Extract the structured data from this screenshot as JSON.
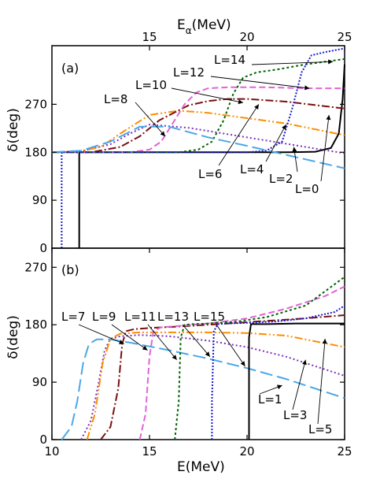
{
  "chart_data": [
    {
      "panel": "(a)",
      "type": "line",
      "top_axis": {
        "label_main": "E",
        "label_sub": "α",
        "label_unit": "(MeV)",
        "ticks": [
          15,
          20,
          25
        ]
      },
      "ylabel_main": "δ",
      "ylabel_unit": "(deg)",
      "ylim": [
        0,
        380
      ],
      "xlim": [
        10,
        25
      ],
      "yticks": [
        0,
        90,
        180,
        270
      ],
      "series": [
        {
          "name": "L=0",
          "color": "#000000",
          "dash": "",
          "x": [
            11.4,
            11.4,
            12,
            18,
            22,
            23.5,
            24.3,
            24.7,
            24.9,
            25
          ],
          "y": [
            0,
            180,
            180,
            180,
            180,
            181,
            188,
            215,
            280,
            345
          ]
        },
        {
          "name": "L=2",
          "color": "#7b2fbe",
          "dash": "2,3",
          "x": [
            10,
            11.5,
            13,
            14,
            15,
            17,
            19,
            21,
            23,
            25
          ],
          "y": [
            180,
            182,
            195,
            215,
            232,
            226,
            214,
            202,
            190,
            178
          ]
        },
        {
          "name": "L=4",
          "color": "#ff8c00",
          "dash": "10,3,2,3,2,3",
          "x": [
            10,
            11.5,
            12.5,
            13.5,
            15,
            16.5,
            18,
            20,
            22,
            25
          ],
          "y": [
            180,
            182,
            190,
            215,
            250,
            258,
            254,
            244,
            234,
            212
          ]
        },
        {
          "name": "L=6",
          "color": "#7a1010",
          "dash": "10,3,2,3",
          "x": [
            10,
            12,
            13.5,
            14.5,
            15.5,
            17,
            18,
            19,
            20,
            22,
            25
          ],
          "y": [
            180,
            180,
            190,
            210,
            240,
            268,
            276,
            280,
            280,
            275,
            262
          ]
        },
        {
          "name": "L=8",
          "color": "#e064d8",
          "dash": "8,4",
          "x": [
            10,
            14,
            15,
            15.6,
            16.2,
            16.8,
            17.4,
            18,
            19,
            21,
            23,
            25
          ],
          "y": [
            180,
            180,
            185,
            200,
            235,
            270,
            292,
            300,
            302,
            302,
            300,
            300
          ]
        },
        {
          "name": "L=10",
          "color": "#006400",
          "dash": "3,3",
          "x": [
            10,
            16.5,
            17.5,
            18.2,
            18.8,
            19.3,
            19.8,
            20.5,
            21.5,
            23,
            25
          ],
          "y": [
            180,
            180,
            185,
            200,
            240,
            290,
            320,
            330,
            335,
            345,
            355
          ]
        },
        {
          "name": "L=12",
          "color": "#1a1acd",
          "dash": "2,2",
          "x": [
            10.5,
            10.5,
            11,
            20,
            21,
            21.8,
            22.3,
            22.8,
            23.3,
            24,
            25
          ],
          "y": [
            0,
            180,
            180,
            180,
            183,
            200,
            260,
            330,
            362,
            368,
            375
          ]
        },
        {
          "name": "L=14",
          "color": "#4aa8e8",
          "dash": "16,6",
          "x": [
            10,
            11.5,
            13,
            14.5,
            16,
            18,
            20,
            22,
            25
          ],
          "y": [
            180,
            183,
            200,
            228,
            228,
            208,
            192,
            175,
            150
          ]
        }
      ],
      "labels": [
        "L=0",
        "L=2",
        "L=4",
        "L=6",
        "L=8",
        "L=10",
        "L=12",
        "L=14"
      ]
    },
    {
      "panel": "(b)",
      "type": "line",
      "xlabel_main": "E",
      "xlabel_unit": "(MeV)",
      "ylabel_main": "δ",
      "ylabel_unit": "(deg)",
      "xlim": [
        10,
        25
      ],
      "ylim": [
        0,
        300
      ],
      "xticks": [
        10,
        15,
        20,
        25
      ],
      "yticks": [
        0,
        90,
        180,
        270
      ],
      "series": [
        {
          "name": "L=1",
          "color": "#4aa8e8",
          "dash": "16,6",
          "x": [
            10.5,
            11,
            11.3,
            11.6,
            11.9,
            12.3,
            13,
            14,
            16,
            18,
            20,
            22,
            25
          ],
          "y": [
            0,
            20,
            60,
            120,
            150,
            157,
            157,
            152,
            140,
            127,
            112,
            95,
            65
          ]
        },
        {
          "name": "L=3",
          "color": "#7b2fbe",
          "dash": "2,3",
          "x": [
            11.5,
            12,
            12.4,
            12.7,
            13,
            13.5,
            14.5,
            16,
            18,
            20,
            22,
            25
          ],
          "y": [
            0,
            30,
            90,
            140,
            158,
            162,
            164,
            162,
            155,
            145,
            130,
            100
          ]
        },
        {
          "name": "L=5",
          "color": "#ff8c00",
          "dash": "10,3,2,3,2,3",
          "x": [
            11.8,
            12.2,
            12.6,
            13,
            13.5,
            14.5,
            16,
            18,
            20,
            22,
            25
          ],
          "y": [
            0,
            40,
            120,
            158,
            166,
            168,
            168,
            168,
            167,
            163,
            145
          ]
        },
        {
          "name": "L=7",
          "color": "#7a1010",
          "dash": "10,3,2,3",
          "x": [
            12.5,
            13,
            13.4,
            13.6,
            13.8,
            14.2,
            15,
            17,
            19,
            21,
            23,
            25
          ],
          "y": [
            0,
            20,
            80,
            150,
            170,
            173,
            175,
            178,
            182,
            186,
            190,
            195
          ]
        },
        {
          "name": "L=9",
          "color": "#e064d8",
          "dash": "8,4",
          "x": [
            14.5,
            14.8,
            15,
            15.2,
            15.6,
            16.5,
            18,
            20,
            22,
            24,
            25
          ],
          "y": [
            0,
            40,
            130,
            170,
            176,
            178,
            182,
            190,
            205,
            225,
            240
          ]
        },
        {
          "name": "L=11",
          "color": "#006400",
          "dash": "3,3",
          "x": [
            16.3,
            16.5,
            16.6,
            16.8,
            17.2,
            18,
            19.5,
            21,
            23,
            25
          ],
          "y": [
            0,
            60,
            160,
            180,
            181,
            182,
            185,
            192,
            210,
            255
          ]
        },
        {
          "name": "L=13",
          "color": "#1a1acd",
          "dash": "2,2",
          "x": [
            18.2,
            18.2,
            18.3,
            18.5,
            19,
            20,
            21.5,
            23,
            24.5,
            25
          ],
          "y": [
            0,
            60,
            170,
            181,
            182,
            183,
            185,
            190,
            200,
            210
          ]
        },
        {
          "name": "L=15",
          "color": "#000000",
          "dash": "",
          "x": [
            20.1,
            20.1,
            20.2,
            21,
            22.5,
            24,
            25
          ],
          "y": [
            0,
            160,
            181,
            181,
            182,
            182,
            182
          ]
        }
      ],
      "labels": [
        "L=1",
        "L=3",
        "L=5",
        "L=7",
        "L=9",
        "L=11",
        "L=13",
        "L=15"
      ]
    }
  ]
}
